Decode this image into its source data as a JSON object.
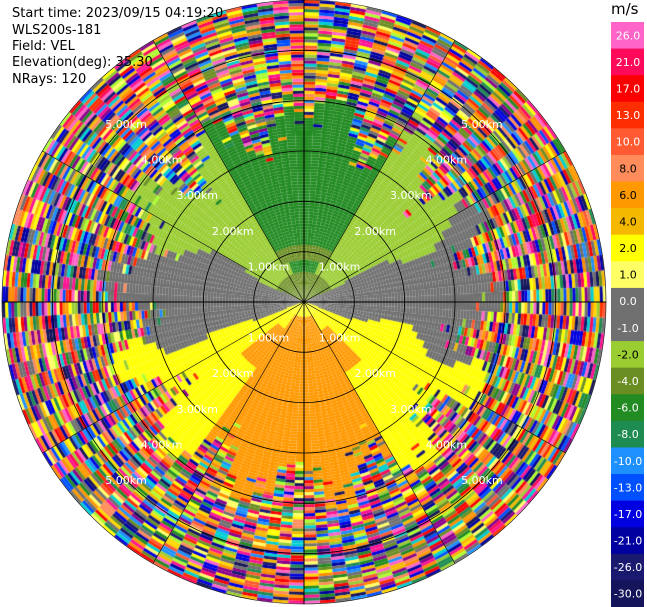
{
  "header": {
    "start_time": "Start time: 2023/09/15 04:19:20",
    "instrument": "WLS200s-181",
    "field": "Field: VEL",
    "elevation": "Elevation(deg): 35.30",
    "nrays": "NRays: 120"
  },
  "chart_data": {
    "type": "heatmap",
    "projection": "polar-ppi",
    "field": "VEL",
    "nrays": 120,
    "range_km": [
      0,
      6.0
    ],
    "range_rings_km": [
      1.0,
      2.0,
      3.0,
      4.0,
      5.0
    ],
    "ring_labels": [
      "1.00km",
      "2.00km",
      "3.00km",
      "4.00km",
      "5.00km"
    ],
    "colorbar": {
      "unit": "m/s",
      "ticks": [
        "26.0",
        "21.0",
        "17.0",
        "13.0",
        "10.0",
        "8.0",
        "6.0",
        "4.0",
        "2.0",
        "1.0",
        "0.0",
        "-1.0",
        "-2.0",
        "-4.0",
        "-6.0",
        "-8.0",
        "-10.0",
        "-13.0",
        "-17.0",
        "-21.0",
        "-26.0",
        "-30.0"
      ],
      "colors": [
        "#FF64C8",
        "#FF0A5A",
        "#FA0000",
        "#FF2E00",
        "#FF5A32",
        "#FF8C5A",
        "#FF9900",
        "#F5B800",
        "#FFFF00",
        "#FFFF66",
        "#707070",
        "#707070",
        "#9ACD32",
        "#6B8E23",
        "#228B22",
        "#1E8C50",
        "#1E90FF",
        "#0050FF",
        "#0000E0",
        "#0000A0",
        "#191970",
        "#14145A"
      ]
    },
    "velocity_pattern": {
      "north_sector": "-6.0 to -2.0 (approaching, green)",
      "south_sector": "2.0 to 6.0 (receding, yellow-orange)",
      "east_west": "0.0 (gray)",
      "beyond_km": 3.6,
      "beyond_note": "noise"
    }
  }
}
